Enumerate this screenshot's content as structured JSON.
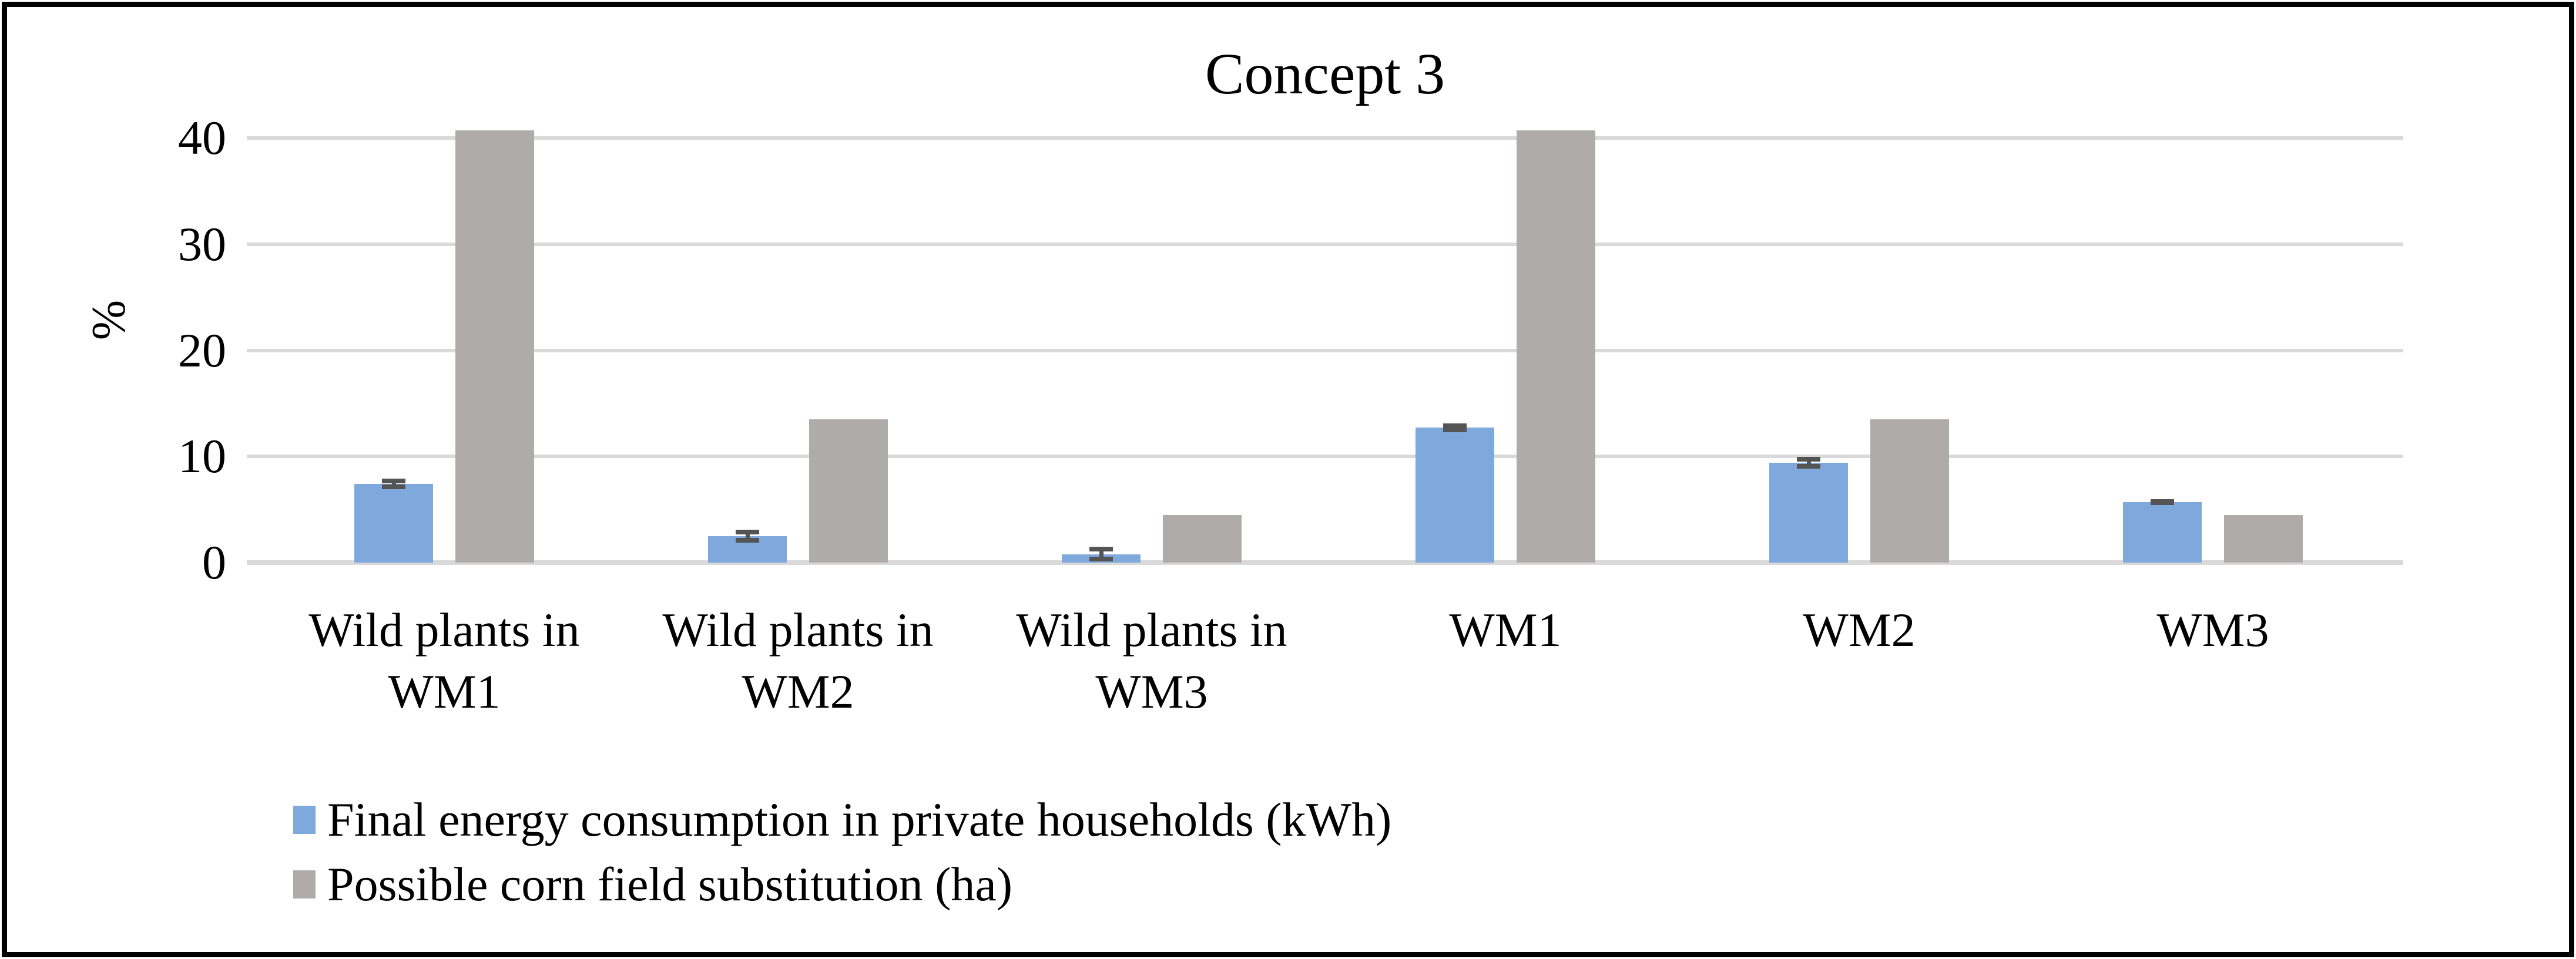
{
  "chart_data": {
    "type": "bar",
    "title": "Concept 3",
    "ylabel": "%",
    "ylim": [
      0,
      40
    ],
    "yticks": [
      0,
      10,
      20,
      30,
      40
    ],
    "grid": true,
    "legend_position": "bottom-left",
    "categories": [
      "Wild plants in\nWM1",
      "Wild plants in\nWM2",
      "Wild plants in\nWM3",
      "WM1",
      "WM2",
      "WM3"
    ],
    "series": [
      {
        "name": "Final energy consumption in private households (kWh)",
        "color": "#7FA8DC",
        "values": [
          7.4,
          2.5,
          0.8,
          12.7,
          9.4,
          5.7
        ],
        "errors": [
          0.5,
          0.6,
          0.7,
          0.4,
          0.55,
          0.3
        ]
      },
      {
        "name": "Possible corn field substitution (ha)",
        "color": "#AFABAB",
        "values": [
          40.7,
          13.5,
          4.5,
          40.7,
          13.5,
          4.5
        ],
        "errors": [
          0,
          0,
          0,
          0,
          0,
          0
        ]
      }
    ],
    "error_bar_color": "#545454",
    "gridline_color": "#D9D9D9",
    "text_color": "#000000"
  }
}
